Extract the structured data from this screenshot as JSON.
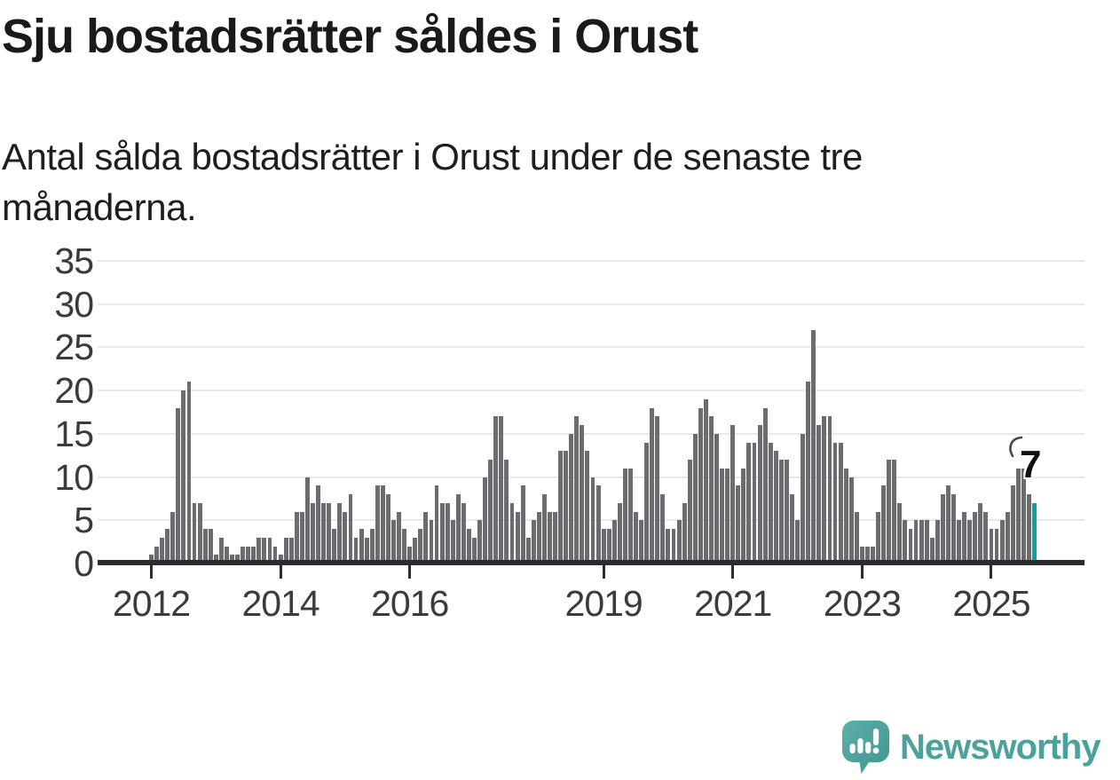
{
  "title": "Sju bostadsrätter såldes i Orust",
  "subtitle": "Antal sålda bostadsrätter i Orust under de senaste tre månaderna.",
  "annotation": {
    "label": "7"
  },
  "logo": {
    "text": "Newsworthy"
  },
  "colors": {
    "bar": "#6b6b70",
    "highlight": "#0da29a",
    "axis": "#2b2c30",
    "gridline": "#e8e8ea",
    "tick_text": "#3a3b3f",
    "logo_teal": "#4ba19b"
  },
  "chart_data": {
    "type": "bar",
    "title": "Sju bostadsrätter såldes i Orust",
    "xlabel": "",
    "ylabel": "",
    "ylim": [
      0,
      35
    ],
    "yticks": [
      0,
      5,
      10,
      15,
      20,
      25,
      30,
      35
    ],
    "grid": true,
    "legend_position": "none",
    "x_unit": "month",
    "xticks": [
      {
        "label": "2012",
        "index": 0
      },
      {
        "label": "2014",
        "index": 24
      },
      {
        "label": "2016",
        "index": 48
      },
      {
        "label": "2019",
        "index": 84
      },
      {
        "label": "2021",
        "index": 108
      },
      {
        "label": "2023",
        "index": 132
      },
      {
        "label": "2025",
        "index": 156
      }
    ],
    "values": [
      1,
      2,
      3,
      4,
      6,
      18,
      20,
      21,
      7,
      7,
      4,
      4,
      1,
      3,
      2,
      1,
      1,
      2,
      2,
      2,
      3,
      3,
      3,
      2,
      1,
      3,
      3,
      6,
      6,
      10,
      7,
      9,
      7,
      7,
      4,
      7,
      6,
      8,
      3,
      4,
      3,
      4,
      9,
      9,
      8,
      5,
      6,
      4,
      2,
      3,
      4,
      6,
      5,
      9,
      7,
      7,
      5,
      8,
      7,
      4,
      3,
      5,
      10,
      12,
      17,
      17,
      12,
      7,
      6,
      9,
      3,
      5,
      6,
      8,
      6,
      6,
      13,
      13,
      15,
      17,
      16,
      13,
      10,
      9,
      4,
      4,
      5,
      7,
      11,
      11,
      6,
      5,
      14,
      18,
      17,
      8,
      4,
      4,
      5,
      7,
      12,
      15,
      18,
      19,
      17,
      15,
      11,
      11,
      16,
      9,
      11,
      14,
      14,
      16,
      18,
      14,
      13,
      12,
      12,
      8,
      5,
      15,
      21,
      27,
      16,
      17,
      17,
      14,
      14,
      11,
      10,
      6,
      2,
      2,
      2,
      6,
      9,
      12,
      12,
      7,
      5,
      4,
      5,
      5,
      5,
      3,
      5,
      8,
      9,
      8,
      5,
      6,
      5,
      6,
      7,
      6,
      4,
      4,
      5,
      6,
      9,
      11,
      11,
      8,
      7
    ],
    "bar_color": "#6b6b70",
    "highlight_color": "#0da29a",
    "highlight_last": true,
    "last_value_label": "7"
  }
}
